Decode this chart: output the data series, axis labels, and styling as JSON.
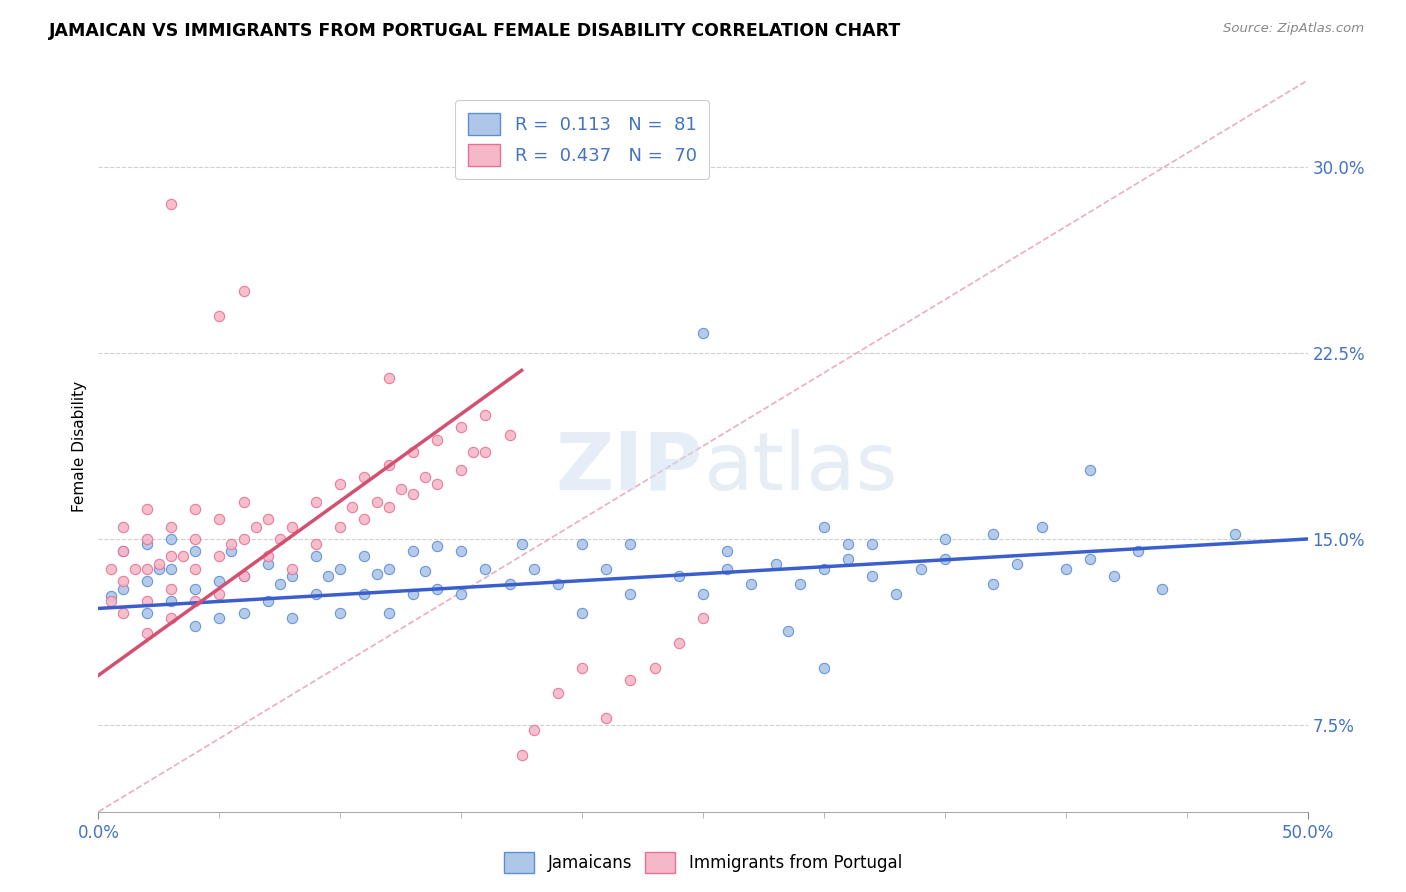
{
  "title": "JAMAICAN VS IMMIGRANTS FROM PORTUGAL FEMALE DISABILITY CORRELATION CHART",
  "source": "Source: ZipAtlas.com",
  "ylabel": "Female Disability",
  "xlim": [
    0.0,
    0.5
  ],
  "ylim": [
    0.04,
    0.335
  ],
  "ytick_positions": [
    0.075,
    0.15,
    0.225,
    0.3
  ],
  "ytick_labels": [
    "7.5%",
    "15.0%",
    "22.5%",
    "30.0%"
  ],
  "blue_color": "#aec6e8",
  "pink_color": "#f5b8c8",
  "blue_edge_color": "#5b8ed6",
  "pink_edge_color": "#e87095",
  "blue_line_color": "#3a5fcd",
  "pink_line_color": "#d45070",
  "diagonal_color": "#e8a0b0",
  "label_color": "#4472c4",
  "blue_trend_x0": 0.0,
  "blue_trend_y0": 0.122,
  "blue_trend_x1": 0.5,
  "blue_trend_y1": 0.15,
  "pink_trend_x0": 0.0,
  "pink_trend_y0": 0.095,
  "pink_trend_x1": 0.175,
  "pink_trend_y1": 0.218,
  "blue_x": [
    0.005,
    0.01,
    0.01,
    0.02,
    0.02,
    0.02,
    0.025,
    0.03,
    0.03,
    0.03,
    0.04,
    0.04,
    0.04,
    0.05,
    0.05,
    0.055,
    0.06,
    0.06,
    0.07,
    0.07,
    0.075,
    0.08,
    0.08,
    0.09,
    0.09,
    0.095,
    0.1,
    0.1,
    0.11,
    0.11,
    0.115,
    0.12,
    0.12,
    0.13,
    0.13,
    0.135,
    0.14,
    0.14,
    0.15,
    0.15,
    0.16,
    0.17,
    0.175,
    0.18,
    0.19,
    0.2,
    0.2,
    0.21,
    0.22,
    0.22,
    0.24,
    0.25,
    0.26,
    0.27,
    0.28,
    0.29,
    0.3,
    0.31,
    0.32,
    0.33,
    0.34,
    0.35,
    0.37,
    0.38,
    0.4,
    0.41,
    0.42,
    0.44,
    0.25,
    0.26,
    0.3,
    0.32,
    0.35,
    0.285,
    0.31,
    0.41,
    0.43,
    0.47,
    0.3,
    0.37,
    0.39
  ],
  "blue_y": [
    0.127,
    0.13,
    0.145,
    0.12,
    0.133,
    0.148,
    0.138,
    0.125,
    0.138,
    0.15,
    0.115,
    0.13,
    0.145,
    0.118,
    0.133,
    0.145,
    0.12,
    0.135,
    0.125,
    0.14,
    0.132,
    0.118,
    0.135,
    0.128,
    0.143,
    0.135,
    0.12,
    0.138,
    0.128,
    0.143,
    0.136,
    0.12,
    0.138,
    0.128,
    0.145,
    0.137,
    0.13,
    0.147,
    0.128,
    0.145,
    0.138,
    0.132,
    0.148,
    0.138,
    0.132,
    0.12,
    0.148,
    0.138,
    0.128,
    0.148,
    0.135,
    0.128,
    0.138,
    0.132,
    0.14,
    0.132,
    0.138,
    0.142,
    0.135,
    0.128,
    0.138,
    0.142,
    0.132,
    0.14,
    0.138,
    0.142,
    0.135,
    0.13,
    0.233,
    0.145,
    0.155,
    0.148,
    0.15,
    0.113,
    0.148,
    0.178,
    0.145,
    0.152,
    0.098,
    0.152,
    0.155
  ],
  "pink_x": [
    0.005,
    0.005,
    0.01,
    0.01,
    0.01,
    0.01,
    0.015,
    0.02,
    0.02,
    0.02,
    0.02,
    0.02,
    0.025,
    0.03,
    0.03,
    0.03,
    0.03,
    0.035,
    0.04,
    0.04,
    0.04,
    0.04,
    0.05,
    0.05,
    0.05,
    0.055,
    0.06,
    0.06,
    0.06,
    0.065,
    0.07,
    0.07,
    0.075,
    0.08,
    0.08,
    0.09,
    0.09,
    0.1,
    0.1,
    0.105,
    0.11,
    0.11,
    0.115,
    0.12,
    0.12,
    0.125,
    0.13,
    0.13,
    0.135,
    0.14,
    0.14,
    0.15,
    0.15,
    0.155,
    0.16,
    0.16,
    0.17,
    0.175,
    0.18,
    0.19,
    0.2,
    0.21,
    0.22,
    0.23,
    0.24,
    0.25,
    0.05,
    0.06,
    0.12,
    0.03
  ],
  "pink_y": [
    0.125,
    0.138,
    0.12,
    0.133,
    0.145,
    0.155,
    0.138,
    0.112,
    0.125,
    0.138,
    0.15,
    0.162,
    0.14,
    0.118,
    0.13,
    0.143,
    0.155,
    0.143,
    0.125,
    0.138,
    0.15,
    0.162,
    0.128,
    0.143,
    0.158,
    0.148,
    0.135,
    0.15,
    0.165,
    0.155,
    0.143,
    0.158,
    0.15,
    0.138,
    0.155,
    0.148,
    0.165,
    0.155,
    0.172,
    0.163,
    0.158,
    0.175,
    0.165,
    0.163,
    0.18,
    0.17,
    0.168,
    0.185,
    0.175,
    0.172,
    0.19,
    0.178,
    0.195,
    0.185,
    0.185,
    0.2,
    0.192,
    0.063,
    0.073,
    0.088,
    0.098,
    0.078,
    0.093,
    0.098,
    0.108,
    0.118,
    0.24,
    0.25,
    0.215,
    0.285
  ]
}
